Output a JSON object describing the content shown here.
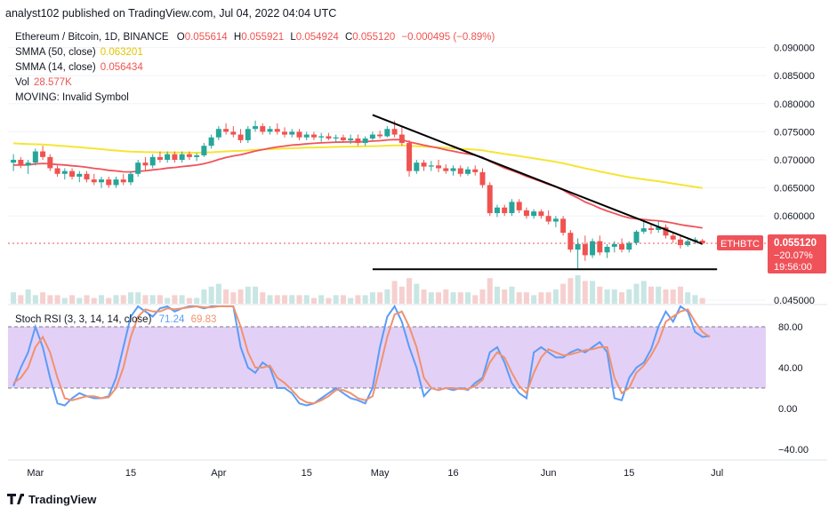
{
  "header": {
    "publisher": "analyst102 published on TradingView.com, Jul 04, 2022 04:04 UTC"
  },
  "legend": {
    "symbol": "Ethereum / Bitcoin, 1D, BINANCE",
    "ohlc": {
      "o_label": "O",
      "o": "0.055614",
      "h_label": "H",
      "h": "0.055921",
      "l_label": "L",
      "l": "0.054924",
      "c_label": "C",
      "c": "0.055120",
      "change": "−0.000495 (−0.89%)"
    },
    "smma50": {
      "label": "SMMA (50, close)",
      "value": "0.063201"
    },
    "smma14": {
      "label": "SMMA (14, close)",
      "value": "0.056434"
    },
    "vol": {
      "label": "Vol",
      "value": "28.577K"
    },
    "moving": {
      "label": "MOVING: Invalid Symbol"
    }
  },
  "price_tag": {
    "symbol": "ETHBTC",
    "price": "0.055120",
    "change": "−20.07%",
    "countdown": "19:56:00"
  },
  "stoch_legend": {
    "label": "Stoch RSI (3, 3, 14, 14, close)",
    "k": "71.24",
    "d": "69.83"
  },
  "footer": {
    "brand": "TradingView"
  },
  "colors": {
    "up": "#26a69a",
    "down": "#ef5350",
    "smma50": "#f5e534",
    "smma14": "#f0525a",
    "trendline": "#000000",
    "k_line": "#5b9cf6",
    "d_line": "#f0926f",
    "rsi_band": "#e3d0f7",
    "price_tag": "#f0525a",
    "vol_up": "#c8e6e3",
    "vol_down": "#f6d0cf"
  },
  "chart_data": [
    {
      "type": "candlestick",
      "title": "Ethereum / Bitcoin, 1D, BINANCE",
      "x_ticks": [
        "Mar",
        "15",
        "Apr",
        "15",
        "May",
        "16",
        "Jun",
        "15",
        "Jul"
      ],
      "y_ticks": [
        "0.090000",
        "0.085000",
        "0.080000",
        "0.075000",
        "0.070000",
        "0.065000",
        "0.060000",
        "0.045000"
      ],
      "ylim": [
        0.045,
        0.092
      ],
      "last_close": 0.05512,
      "candles": [
        [
          0.0695,
          0.071,
          0.068,
          0.07
        ],
        [
          0.07,
          0.0705,
          0.0685,
          0.069
        ],
        [
          0.069,
          0.07,
          0.0675,
          0.0695
        ],
        [
          0.0695,
          0.072,
          0.069,
          0.0715
        ],
        [
          0.0715,
          0.0725,
          0.07,
          0.0705
        ],
        [
          0.0705,
          0.071,
          0.068,
          0.0685
        ],
        [
          0.0685,
          0.069,
          0.067,
          0.0675
        ],
        [
          0.0675,
          0.0685,
          0.0665,
          0.068
        ],
        [
          0.068,
          0.0685,
          0.0665,
          0.067
        ],
        [
          0.067,
          0.068,
          0.066,
          0.0675
        ],
        [
          0.0675,
          0.068,
          0.066,
          0.0665
        ],
        [
          0.0665,
          0.0675,
          0.0655,
          0.066
        ],
        [
          0.066,
          0.067,
          0.065,
          0.0665
        ],
        [
          0.0665,
          0.067,
          0.065,
          0.0655
        ],
        [
          0.0655,
          0.067,
          0.065,
          0.0665
        ],
        [
          0.0665,
          0.0675,
          0.0655,
          0.066
        ],
        [
          0.066,
          0.068,
          0.0655,
          0.0675
        ],
        [
          0.0675,
          0.07,
          0.067,
          0.0695
        ],
        [
          0.0695,
          0.0705,
          0.068,
          0.069
        ],
        [
          0.069,
          0.071,
          0.0685,
          0.0705
        ],
        [
          0.0705,
          0.0715,
          0.0695,
          0.07
        ],
        [
          0.07,
          0.0715,
          0.0695,
          0.071
        ],
        [
          0.071,
          0.0715,
          0.0695,
          0.07
        ],
        [
          0.07,
          0.0715,
          0.0695,
          0.071
        ],
        [
          0.071,
          0.0715,
          0.07,
          0.0705
        ],
        [
          0.0705,
          0.0712,
          0.0698,
          0.0708
        ],
        [
          0.0708,
          0.073,
          0.0705,
          0.0725
        ],
        [
          0.0725,
          0.0745,
          0.072,
          0.074
        ],
        [
          0.074,
          0.076,
          0.0735,
          0.0755
        ],
        [
          0.0755,
          0.0765,
          0.0745,
          0.075
        ],
        [
          0.075,
          0.076,
          0.074,
          0.0745
        ],
        [
          0.0745,
          0.0755,
          0.073,
          0.0735
        ],
        [
          0.0735,
          0.076,
          0.073,
          0.0755
        ],
        [
          0.0755,
          0.077,
          0.075,
          0.076
        ],
        [
          0.076,
          0.0765,
          0.0745,
          0.075
        ],
        [
          0.075,
          0.076,
          0.0745,
          0.0755
        ],
        [
          0.0755,
          0.0765,
          0.0745,
          0.075
        ],
        [
          0.075,
          0.0758,
          0.074,
          0.0745
        ],
        [
          0.0745,
          0.0755,
          0.074,
          0.075
        ],
        [
          0.075,
          0.0755,
          0.0735,
          0.074
        ],
        [
          0.074,
          0.075,
          0.0735,
          0.0745
        ],
        [
          0.0745,
          0.075,
          0.0735,
          0.074
        ],
        [
          0.074,
          0.0748,
          0.0732,
          0.0742
        ],
        [
          0.0742,
          0.0748,
          0.0735,
          0.0738
        ],
        [
          0.0738,
          0.0745,
          0.0732,
          0.074
        ],
        [
          0.074,
          0.0745,
          0.073,
          0.0735
        ],
        [
          0.0735,
          0.0745,
          0.0728,
          0.0738
        ],
        [
          0.0738,
          0.0745,
          0.0725,
          0.073
        ],
        [
          0.073,
          0.0742,
          0.0725,
          0.0738
        ],
        [
          0.0738,
          0.075,
          0.0735,
          0.0745
        ],
        [
          0.0745,
          0.0752,
          0.0738,
          0.0742
        ],
        [
          0.0742,
          0.076,
          0.074,
          0.0755
        ],
        [
          0.0755,
          0.077,
          0.074,
          0.0745
        ],
        [
          0.0745,
          0.076,
          0.0725,
          0.073
        ],
        [
          0.073,
          0.0735,
          0.067,
          0.068
        ],
        [
          0.068,
          0.07,
          0.0675,
          0.0695
        ],
        [
          0.0695,
          0.07,
          0.068,
          0.0688
        ],
        [
          0.0688,
          0.0698,
          0.068,
          0.069
        ],
        [
          0.069,
          0.07,
          0.0678,
          0.0685
        ],
        [
          0.0685,
          0.0692,
          0.0675,
          0.068
        ],
        [
          0.068,
          0.069,
          0.0672,
          0.0685
        ],
        [
          0.0685,
          0.069,
          0.067,
          0.0675
        ],
        [
          0.0675,
          0.0688,
          0.0672,
          0.0683
        ],
        [
          0.0683,
          0.069,
          0.0672,
          0.0678
        ],
        [
          0.0678,
          0.0685,
          0.065,
          0.0655
        ],
        [
          0.0655,
          0.066,
          0.06,
          0.0605
        ],
        [
          0.0605,
          0.062,
          0.0598,
          0.0615
        ],
        [
          0.0615,
          0.062,
          0.06,
          0.0605
        ],
        [
          0.0605,
          0.063,
          0.06,
          0.0625
        ],
        [
          0.0625,
          0.063,
          0.0605,
          0.061
        ],
        [
          0.061,
          0.0615,
          0.0595,
          0.06
        ],
        [
          0.06,
          0.0612,
          0.0595,
          0.0608
        ],
        [
          0.0608,
          0.0612,
          0.0595,
          0.06
        ],
        [
          0.06,
          0.061,
          0.0585,
          0.059
        ],
        [
          0.059,
          0.06,
          0.058,
          0.0595
        ],
        [
          0.0595,
          0.06,
          0.0565,
          0.057
        ],
        [
          0.057,
          0.0575,
          0.0535,
          0.054
        ],
        [
          0.054,
          0.056,
          0.0505,
          0.055
        ],
        [
          0.055,
          0.0565,
          0.052,
          0.053
        ],
        [
          0.053,
          0.056,
          0.0525,
          0.0555
        ],
        [
          0.0555,
          0.0565,
          0.053,
          0.0535
        ],
        [
          0.0535,
          0.055,
          0.0525,
          0.0545
        ],
        [
          0.0545,
          0.0555,
          0.0535,
          0.055
        ],
        [
          0.055,
          0.056,
          0.0535,
          0.054
        ],
        [
          0.054,
          0.0555,
          0.0535,
          0.0552
        ],
        [
          0.0552,
          0.0575,
          0.0548,
          0.0572
        ],
        [
          0.0572,
          0.059,
          0.0568,
          0.0578
        ],
        [
          0.0578,
          0.0585,
          0.0568,
          0.0575
        ],
        [
          0.0575,
          0.059,
          0.057,
          0.058
        ],
        [
          0.058,
          0.0585,
          0.056,
          0.0565
        ],
        [
          0.0565,
          0.057,
          0.0552,
          0.0558
        ],
        [
          0.0558,
          0.0565,
          0.0542,
          0.0548
        ],
        [
          0.0548,
          0.0558,
          0.0545,
          0.0555
        ],
        [
          0.0555,
          0.0562,
          0.055,
          0.0558
        ],
        [
          0.0556,
          0.0559,
          0.0549,
          0.0551
        ]
      ],
      "volume": [
        4,
        3,
        5,
        3,
        4,
        3,
        3,
        2,
        3,
        2,
        3,
        2,
        3,
        2,
        3,
        3,
        4,
        4,
        3,
        3,
        3,
        2,
        3,
        3,
        2,
        2,
        5,
        6,
        7,
        5,
        4,
        5,
        6,
        6,
        4,
        3,
        3,
        3,
        3,
        3,
        3,
        2,
        3,
        2,
        3,
        3,
        2,
        3,
        3,
        4,
        4,
        5,
        8,
        6,
        9,
        7,
        5,
        4,
        4,
        5,
        4,
        4,
        4,
        3,
        5,
        9,
        6,
        5,
        6,
        4,
        4,
        3,
        4,
        4,
        5,
        7,
        9,
        10,
        8,
        8,
        6,
        5,
        5,
        4,
        5,
        7,
        8,
        6,
        6,
        5,
        5,
        6,
        4,
        3,
        2
      ],
      "trendline_from_price": 0.078,
      "trendline_to_price": 0.055,
      "horizontal_support": 0.0505
    },
    {
      "type": "line",
      "title": "Stoch RSI (3, 3, 14, 14, close)",
      "y_ticks": [
        "80.00",
        "40.00",
        "0.00",
        "−40.00"
      ],
      "ylim": [
        -45,
        105
      ],
      "band": [
        20,
        80
      ],
      "series": [
        {
          "name": "K",
          "values": [
            22,
            40,
            55,
            80,
            60,
            30,
            5,
            3,
            10,
            15,
            12,
            10,
            10,
            12,
            30,
            60,
            90,
            100,
            95,
            90,
            98,
            100,
            95,
            98,
            100,
            100,
            98,
            100,
            100,
            100,
            100,
            60,
            40,
            35,
            45,
            40,
            20,
            20,
            15,
            5,
            3,
            5,
            10,
            15,
            20,
            15,
            10,
            8,
            5,
            20,
            60,
            90,
            100,
            85,
            60,
            40,
            12,
            20,
            18,
            20,
            18,
            20,
            18,
            25,
            30,
            55,
            60,
            45,
            25,
            15,
            10,
            55,
            60,
            55,
            50,
            50,
            55,
            58,
            55,
            60,
            65,
            55,
            10,
            8,
            30,
            40,
            45,
            58,
            80,
            95,
            85,
            100,
            95,
            75,
            70,
            71
          ]
        },
        {
          "name": "D",
          "values": [
            25,
            30,
            40,
            60,
            70,
            55,
            30,
            10,
            8,
            10,
            12,
            12,
            10,
            11,
            20,
            40,
            70,
            90,
            97,
            95,
            95,
            98,
            97,
            98,
            99,
            100,
            99,
            99,
            100,
            100,
            100,
            80,
            55,
            40,
            40,
            42,
            30,
            25,
            18,
            10,
            6,
            5,
            8,
            12,
            18,
            18,
            15,
            10,
            8,
            12,
            40,
            70,
            92,
            95,
            80,
            60,
            30,
            20,
            18,
            20,
            20,
            19,
            19,
            22,
            28,
            45,
            55,
            50,
            35,
            22,
            15,
            35,
            50,
            58,
            55,
            52,
            53,
            55,
            57,
            58,
            60,
            60,
            30,
            15,
            20,
            35,
            42,
            52,
            65,
            85,
            90,
            95,
            97,
            85,
            75,
            69.83
          ]
        }
      ]
    }
  ]
}
